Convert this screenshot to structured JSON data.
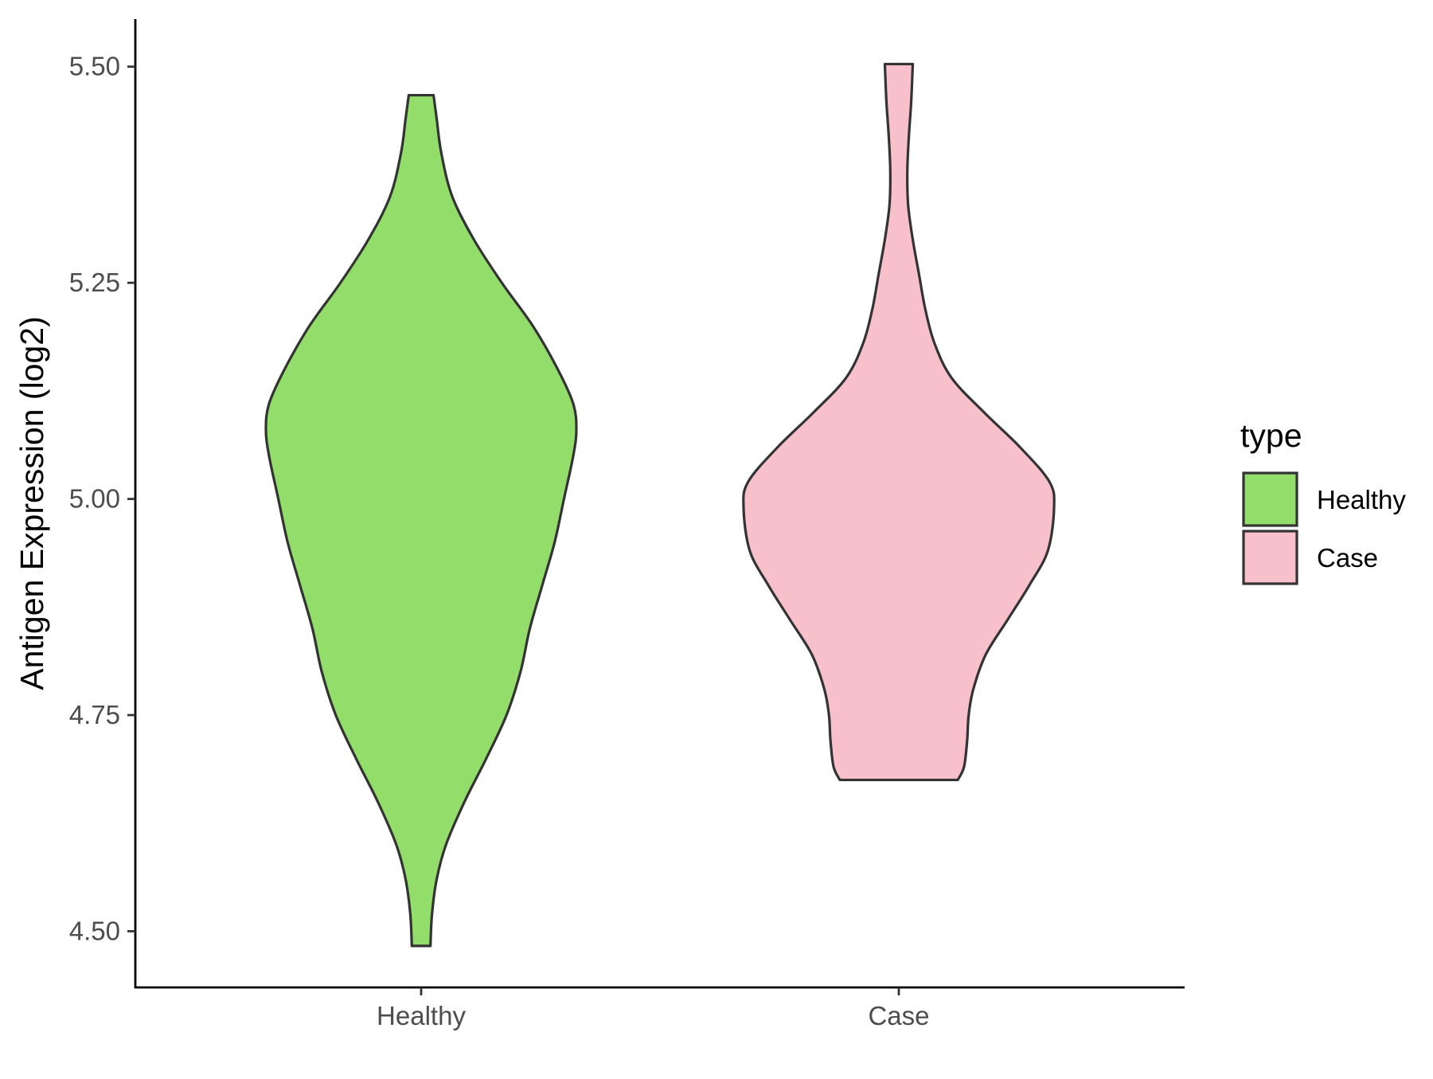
{
  "chart_data": {
    "type": "violin",
    "title": "",
    "xlabel": "",
    "ylabel": "Antigen Expression (log2)",
    "ylim": [
      4.435,
      5.555
    ],
    "y_ticks": [
      "4.50",
      "4.75",
      "5.00",
      "5.25",
      "5.50"
    ],
    "y_tick_values": [
      4.5,
      4.75,
      5.0,
      5.25,
      5.5
    ],
    "categories": [
      "Healthy",
      "Case"
    ],
    "grid": false,
    "legend": {
      "title": "type",
      "position": "right",
      "entries": [
        "Healthy",
        "Case"
      ]
    },
    "series": [
      {
        "name": "Healthy",
        "color": "#93dd6a",
        "outline": "#333333",
        "min": 4.483,
        "max": 5.467,
        "density_profile": [
          [
            4.483,
            0.06
          ],
          [
            4.52,
            0.07
          ],
          [
            4.56,
            0.1
          ],
          [
            4.6,
            0.16
          ],
          [
            4.65,
            0.28
          ],
          [
            4.7,
            0.42
          ],
          [
            4.75,
            0.55
          ],
          [
            4.8,
            0.64
          ],
          [
            4.85,
            0.7
          ],
          [
            4.9,
            0.78
          ],
          [
            4.95,
            0.86
          ],
          [
            5.0,
            0.92
          ],
          [
            5.05,
            0.98
          ],
          [
            5.08,
            1.0
          ],
          [
            5.11,
            0.98
          ],
          [
            5.15,
            0.88
          ],
          [
            5.2,
            0.72
          ],
          [
            5.25,
            0.52
          ],
          [
            5.3,
            0.34
          ],
          [
            5.35,
            0.2
          ],
          [
            5.4,
            0.13
          ],
          [
            5.44,
            0.1
          ],
          [
            5.467,
            0.08
          ]
        ]
      },
      {
        "name": "Case",
        "color": "#f7c0cb",
        "outline": "#333333",
        "min": 4.675,
        "max": 5.503,
        "density_profile": [
          [
            4.675,
            0.38
          ],
          [
            4.69,
            0.42
          ],
          [
            4.72,
            0.44
          ],
          [
            4.75,
            0.45
          ],
          [
            4.78,
            0.48
          ],
          [
            4.82,
            0.56
          ],
          [
            4.86,
            0.7
          ],
          [
            4.9,
            0.84
          ],
          [
            4.94,
            0.96
          ],
          [
            4.99,
            1.0
          ],
          [
            5.02,
            0.97
          ],
          [
            5.06,
            0.78
          ],
          [
            5.1,
            0.55
          ],
          [
            5.14,
            0.34
          ],
          [
            5.18,
            0.23
          ],
          [
            5.22,
            0.17
          ],
          [
            5.26,
            0.13
          ],
          [
            5.3,
            0.09
          ],
          [
            5.34,
            0.06
          ],
          [
            5.38,
            0.055
          ],
          [
            5.42,
            0.065
          ],
          [
            5.46,
            0.08
          ],
          [
            5.503,
            0.09
          ]
        ]
      }
    ]
  }
}
